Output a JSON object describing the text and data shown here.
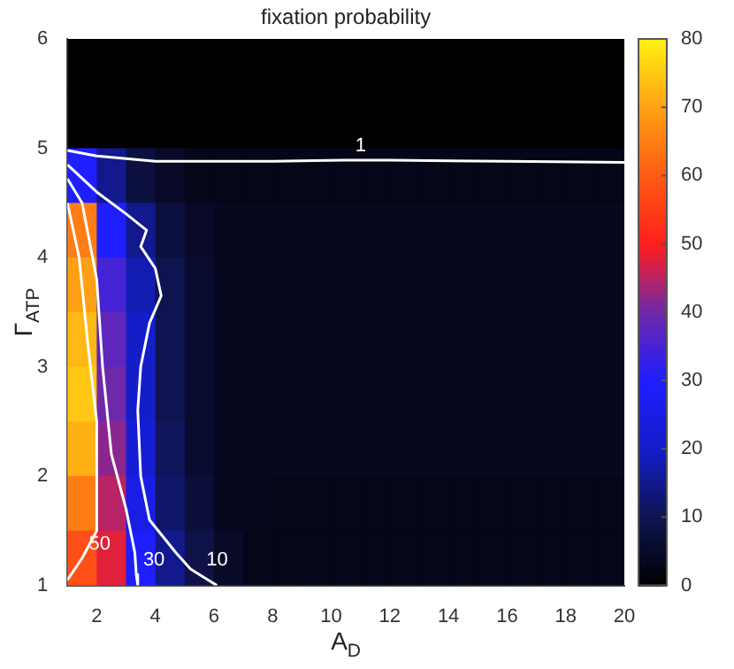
{
  "chart_data": {
    "type": "heatmap",
    "title": "fixation probability",
    "xlabel": "A$_{D}$",
    "ylabel": "Γ$_{ATP}$",
    "x": [
      1.5,
      2.5,
      3.5,
      4.5,
      5.5,
      6.5,
      7.5,
      8.5,
      9.5,
      10.5,
      11.5,
      12.5,
      13.5,
      14.5,
      15.5,
      16.5,
      17.5,
      18.5,
      19.5
    ],
    "y": [
      5.75,
      5.25,
      4.75,
      4.25,
      3.75,
      3.25,
      2.75,
      2.25,
      1.75,
      1.25
    ],
    "cells": [
      [
        0,
        0,
        0,
        0,
        0,
        0,
        0,
        0,
        0,
        0,
        0,
        0,
        0,
        0,
        0,
        0,
        0,
        0,
        0
      ],
      [
        0,
        0,
        0,
        0,
        0,
        0,
        0,
        0,
        0,
        0,
        0,
        0,
        0,
        0,
        0,
        0,
        0,
        0,
        0
      ],
      [
        30,
        15,
        8,
        5,
        3,
        3,
        3,
        3,
        3,
        3,
        3,
        3,
        3,
        3,
        3,
        3,
        3,
        3,
        3
      ],
      [
        65,
        30,
        15,
        8,
        5,
        4,
        4,
        4,
        4,
        4,
        4,
        4,
        4,
        4,
        4,
        4,
        4,
        4,
        4
      ],
      [
        70,
        35,
        18,
        10,
        6,
        4,
        4,
        4,
        4,
        4,
        4,
        4,
        4,
        4,
        4,
        4,
        4,
        4,
        4
      ],
      [
        73,
        38,
        20,
        10,
        6,
        4,
        4,
        4,
        4,
        4,
        4,
        4,
        4,
        4,
        4,
        4,
        4,
        4,
        4
      ],
      [
        75,
        40,
        20,
        10,
        6,
        4,
        4,
        4,
        4,
        4,
        4,
        4,
        4,
        4,
        4,
        4,
        4,
        4,
        4
      ],
      [
        72,
        42,
        22,
        11,
        6,
        4,
        4,
        4,
        4,
        4,
        4,
        4,
        4,
        4,
        4,
        4,
        4,
        4,
        4
      ],
      [
        65,
        45,
        25,
        12,
        7,
        4,
        4,
        3,
        3,
        3,
        3,
        3,
        3,
        3,
        3,
        3,
        3,
        3,
        3
      ],
      [
        58,
        48,
        30,
        15,
        9,
        5,
        3,
        3,
        3,
        3,
        3,
        3,
        3,
        3,
        3,
        3,
        3,
        3,
        3
      ]
    ],
    "clim": [
      0,
      80
    ],
    "cticks": [
      0,
      10,
      20,
      30,
      40,
      50,
      60,
      70,
      80
    ],
    "xlim": [
      1,
      20
    ],
    "xticks": [
      2,
      4,
      6,
      8,
      10,
      12,
      14,
      16,
      18,
      20
    ],
    "ylim": [
      1,
      6
    ],
    "yticks": [
      1,
      2,
      3,
      4,
      5,
      6
    ],
    "series": [
      {
        "type": "line",
        "color": "#ffffff",
        "x": [
          1,
          2,
          4,
          8,
          10.4,
          12,
          16,
          20
        ],
        "values": [
          4.98,
          4.93,
          4.88,
          4.88,
          4.89,
          4.89,
          4.88,
          4.87
        ]
      },
      {
        "type": "line",
        "color": "#ffffff",
        "x": [
          1,
          2,
          3,
          3.7,
          3.5,
          4,
          4.2,
          3.8,
          3.5,
          3.4,
          3.5,
          3.8,
          4.7,
          5.2,
          5.5,
          6.1
        ],
        "values": [
          4.85,
          4.6,
          4.4,
          4.25,
          4.1,
          3.9,
          3.65,
          3.4,
          3,
          2.6,
          2,
          1.6,
          1.3,
          1.15,
          1.1,
          1
        ]
      },
      {
        "type": "line",
        "color": "#ffffff",
        "x": [
          1,
          1.5,
          2,
          2.2,
          2.5,
          3,
          3.3,
          3.35,
          3.4
        ],
        "values": [
          4.72,
          4.5,
          3.8,
          3,
          2.2,
          1.7,
          1.3,
          1.1,
          1
        ]
      },
      {
        "type": "line",
        "color": "#ffffff",
        "x": [
          1,
          1.4,
          1.7,
          2,
          2,
          1.5,
          1
        ],
        "values": [
          4.5,
          4,
          3.2,
          2.5,
          1.5,
          1.25,
          1.05
        ]
      }
    ],
    "annotations": [
      {
        "text": "1",
        "x": 10.4,
        "y": 4.89
      },
      {
        "text": "10",
        "x": 5.5,
        "y": 1.1
      },
      {
        "text": "30",
        "x": 3.35,
        "y": 1.1
      },
      {
        "text": "50",
        "x": 1.5,
        "y": 1.25
      }
    ],
    "grid": false,
    "legend": false
  }
}
